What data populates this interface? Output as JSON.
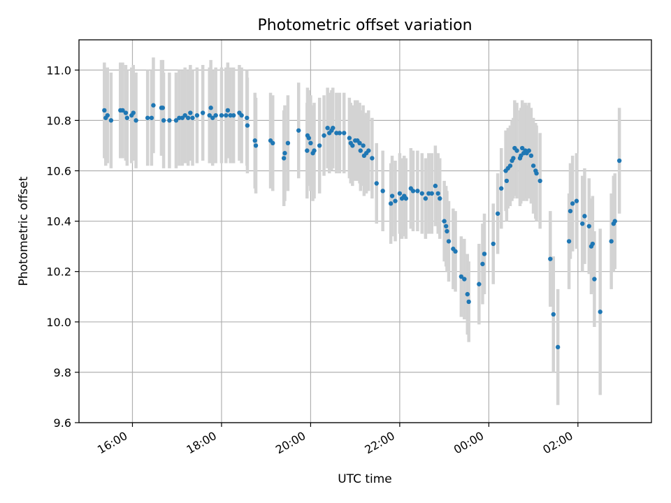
{
  "chart_data": {
    "type": "scatter",
    "title": "Photometric offset variation",
    "xlabel": "UTC time",
    "ylabel": "Photometric offset",
    "x_unit": "hours since 00:00 on first day (values >24 are after midnight)",
    "xlim": [
      14.8,
      27.65
    ],
    "ylim": [
      9.6,
      11.12
    ],
    "xticks": [
      {
        "value": 16,
        "label": "16:00"
      },
      {
        "value": 18,
        "label": "18:00"
      },
      {
        "value": 20,
        "label": "20:00"
      },
      {
        "value": 22,
        "label": "22:00"
      },
      {
        "value": 24,
        "label": "00:00"
      },
      {
        "value": 26,
        "label": "02:00"
      }
    ],
    "yticks": [
      9.6,
      9.8,
      10.0,
      10.2,
      10.4,
      10.6,
      10.8,
      11.0
    ],
    "ytick_labels": [
      "9.6",
      "9.8",
      "10.0",
      "10.2",
      "10.4",
      "10.6",
      "10.8",
      "11.0"
    ],
    "grid": true,
    "colors": {
      "points": "#1f77b4",
      "errorbars": "#d3d3d3"
    },
    "series": [
      {
        "name": "",
        "points": [
          [
            15.37,
            10.84,
            0.19
          ],
          [
            15.4,
            10.81,
            0.19
          ],
          [
            15.44,
            10.82,
            0.19
          ],
          [
            15.52,
            10.8,
            0.19
          ],
          [
            15.73,
            10.84,
            0.19
          ],
          [
            15.78,
            10.84,
            0.19
          ],
          [
            15.85,
            10.83,
            0.19
          ],
          [
            15.88,
            10.81,
            0.19
          ],
          [
            15.98,
            10.82,
            0.19
          ],
          [
            16.02,
            10.83,
            0.19
          ],
          [
            16.08,
            10.8,
            0.19
          ],
          [
            16.34,
            10.81,
            0.19
          ],
          [
            16.43,
            10.81,
            0.19
          ],
          [
            16.47,
            10.86,
            0.19
          ],
          [
            16.65,
            10.85,
            0.19
          ],
          [
            16.68,
            10.85,
            0.19
          ],
          [
            16.7,
            10.8,
            0.19
          ],
          [
            16.83,
            10.8,
            0.19
          ],
          [
            16.98,
            10.8,
            0.19
          ],
          [
            17.05,
            10.81,
            0.19
          ],
          [
            17.12,
            10.81,
            0.19
          ],
          [
            17.18,
            10.82,
            0.19
          ],
          [
            17.25,
            10.81,
            0.19
          ],
          [
            17.3,
            10.83,
            0.19
          ],
          [
            17.35,
            10.81,
            0.19
          ],
          [
            17.45,
            10.82,
            0.19
          ],
          [
            17.58,
            10.83,
            0.19
          ],
          [
            17.73,
            10.82,
            0.19
          ],
          [
            17.76,
            10.85,
            0.19
          ],
          [
            17.8,
            10.81,
            0.19
          ],
          [
            17.87,
            10.82,
            0.19
          ],
          [
            18.0,
            10.82,
            0.19
          ],
          [
            18.1,
            10.82,
            0.19
          ],
          [
            18.14,
            10.84,
            0.19
          ],
          [
            18.2,
            10.82,
            0.19
          ],
          [
            18.27,
            10.82,
            0.19
          ],
          [
            18.4,
            10.83,
            0.19
          ],
          [
            18.45,
            10.82,
            0.19
          ],
          [
            18.57,
            10.81,
            0.19
          ],
          [
            18.58,
            10.78,
            0.19
          ],
          [
            18.75,
            10.72,
            0.19
          ],
          [
            18.77,
            10.7,
            0.19
          ],
          [
            19.1,
            10.72,
            0.19
          ],
          [
            19.15,
            10.71,
            0.19
          ],
          [
            19.4,
            10.65,
            0.19
          ],
          [
            19.42,
            10.67,
            0.19
          ],
          [
            19.49,
            10.71,
            0.19
          ],
          [
            19.73,
            10.76,
            0.19
          ],
          [
            19.92,
            10.68,
            0.19
          ],
          [
            19.93,
            10.74,
            0.19
          ],
          [
            19.96,
            10.73,
            0.19
          ],
          [
            20.0,
            10.71,
            0.19
          ],
          [
            20.05,
            10.67,
            0.19
          ],
          [
            20.08,
            10.68,
            0.19
          ],
          [
            20.2,
            10.7,
            0.19
          ],
          [
            20.3,
            10.74,
            0.16
          ],
          [
            20.38,
            10.77,
            0.16
          ],
          [
            20.42,
            10.75,
            0.16
          ],
          [
            20.47,
            10.76,
            0.16
          ],
          [
            20.5,
            10.77,
            0.16
          ],
          [
            20.58,
            10.75,
            0.16
          ],
          [
            20.65,
            10.75,
            0.16
          ],
          [
            20.75,
            10.75,
            0.16
          ],
          [
            20.87,
            10.73,
            0.16
          ],
          [
            20.9,
            10.71,
            0.16
          ],
          [
            20.94,
            10.7,
            0.16
          ],
          [
            21.0,
            10.72,
            0.16
          ],
          [
            21.05,
            10.72,
            0.16
          ],
          [
            21.1,
            10.71,
            0.16
          ],
          [
            21.12,
            10.68,
            0.16
          ],
          [
            21.18,
            10.7,
            0.16
          ],
          [
            21.2,
            10.66,
            0.16
          ],
          [
            21.25,
            10.67,
            0.16
          ],
          [
            21.3,
            10.68,
            0.16
          ],
          [
            21.38,
            10.65,
            0.16
          ],
          [
            21.48,
            10.55,
            0.16
          ],
          [
            21.62,
            10.52,
            0.16
          ],
          [
            21.8,
            10.47,
            0.16
          ],
          [
            21.83,
            10.5,
            0.16
          ],
          [
            21.9,
            10.48,
            0.16
          ],
          [
            22.0,
            10.51,
            0.16
          ],
          [
            22.05,
            10.49,
            0.16
          ],
          [
            22.1,
            10.5,
            0.16
          ],
          [
            22.14,
            10.49,
            0.16
          ],
          [
            22.25,
            10.53,
            0.16
          ],
          [
            22.3,
            10.52,
            0.16
          ],
          [
            22.4,
            10.52,
            0.16
          ],
          [
            22.5,
            10.51,
            0.16
          ],
          [
            22.58,
            10.49,
            0.16
          ],
          [
            22.65,
            10.51,
            0.16
          ],
          [
            22.72,
            10.51,
            0.16
          ],
          [
            22.8,
            10.54,
            0.16
          ],
          [
            22.86,
            10.51,
            0.16
          ],
          [
            22.9,
            10.49,
            0.16
          ],
          [
            23.0,
            10.4,
            0.16
          ],
          [
            23.04,
            10.38,
            0.16
          ],
          [
            23.06,
            10.36,
            0.16
          ],
          [
            23.1,
            10.32,
            0.16
          ],
          [
            23.2,
            10.29,
            0.16
          ],
          [
            23.25,
            10.28,
            0.16
          ],
          [
            23.38,
            10.18,
            0.16
          ],
          [
            23.45,
            10.17,
            0.16
          ],
          [
            23.52,
            10.11,
            0.16
          ],
          [
            23.55,
            10.08,
            0.16
          ],
          [
            23.78,
            10.15,
            0.16
          ],
          [
            23.86,
            10.23,
            0.16
          ],
          [
            23.9,
            10.27,
            0.16
          ],
          [
            24.1,
            10.31,
            0.16
          ],
          [
            24.2,
            10.43,
            0.16
          ],
          [
            24.28,
            10.53,
            0.16
          ],
          [
            24.38,
            10.6,
            0.16
          ],
          [
            24.4,
            10.56,
            0.16
          ],
          [
            24.43,
            10.61,
            0.16
          ],
          [
            24.48,
            10.62,
            0.16
          ],
          [
            24.52,
            10.64,
            0.16
          ],
          [
            24.55,
            10.65,
            0.16
          ],
          [
            24.58,
            10.69,
            0.19
          ],
          [
            24.63,
            10.68,
            0.19
          ],
          [
            24.7,
            10.65,
            0.19
          ],
          [
            24.72,
            10.66,
            0.19
          ],
          [
            24.75,
            10.69,
            0.19
          ],
          [
            24.78,
            10.67,
            0.19
          ],
          [
            24.82,
            10.68,
            0.19
          ],
          [
            24.85,
            10.67,
            0.19
          ],
          [
            24.9,
            10.68,
            0.19
          ],
          [
            24.95,
            10.66,
            0.19
          ],
          [
            25.0,
            10.62,
            0.19
          ],
          [
            25.05,
            10.6,
            0.19
          ],
          [
            25.07,
            10.59,
            0.19
          ],
          [
            25.15,
            10.56,
            0.19
          ],
          [
            25.38,
            10.25,
            0.19
          ],
          [
            25.45,
            10.03,
            0.23
          ],
          [
            25.55,
            9.9,
            0.23
          ],
          [
            25.8,
            10.32,
            0.19
          ],
          [
            25.83,
            10.44,
            0.19
          ],
          [
            25.88,
            10.47,
            0.19
          ],
          [
            25.97,
            10.48,
            0.19
          ],
          [
            26.1,
            10.39,
            0.19
          ],
          [
            26.15,
            10.42,
            0.19
          ],
          [
            26.25,
            10.38,
            0.19
          ],
          [
            26.3,
            10.3,
            0.19
          ],
          [
            26.33,
            10.31,
            0.19
          ],
          [
            26.37,
            10.17,
            0.19
          ],
          [
            26.5,
            10.04,
            0.33
          ],
          [
            26.75,
            10.32,
            0.19
          ],
          [
            26.8,
            10.39,
            0.19
          ],
          [
            26.83,
            10.4,
            0.19
          ],
          [
            26.93,
            10.64,
            0.21
          ]
        ]
      }
    ]
  }
}
